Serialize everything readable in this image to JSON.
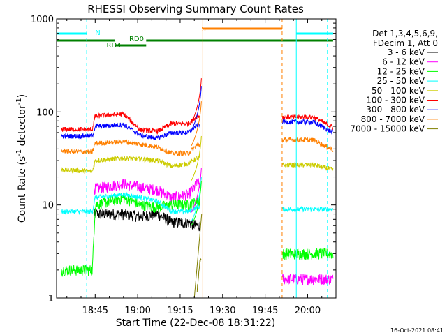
{
  "chart_data": {
    "type": "line",
    "title": "RHESSI Observing Summary Count Rates",
    "xlabel": "Start Time (22-Dec-08 18:31:22)",
    "ylabel_main": "Count Rate (s",
    "ylabel_sup1": "-1",
    "ylabel_mid": " detector",
    "ylabel_sup2": "-1",
    "ylabel_end": ")",
    "yscale": "log",
    "ylim": [
      1,
      1000
    ],
    "xlim": [
      "18:31",
      "20:10"
    ],
    "x_ticks": [
      "18:45",
      "19:00",
      "19:15",
      "19:30",
      "19:45",
      "20:00"
    ],
    "y_ticks": [
      "1",
      "10",
      "100",
      "1000"
    ],
    "timestamp": "16-Oct-2021 08:41",
    "legend": {
      "header1": "Det 1,3,4,5,6,9,",
      "header2": "FDecim 1, Att 0",
      "placement": "right"
    },
    "series": [
      {
        "name": "3 - 6 keV",
        "color": "#000000",
        "x": [
          "18:33",
          "18:44",
          "18:45",
          "18:55",
          "19:01",
          "19:07",
          "19:12",
          "19:18",
          "19:21",
          "19:23",
          "20:02",
          "20:09"
        ],
        "values": [
          0,
          0,
          8,
          8,
          7.5,
          8,
          6.5,
          6.5,
          6,
          0,
          0,
          0
        ]
      },
      {
        "name": "6 - 12 keV",
        "color": "#ff00ff",
        "x": [
          "18:44",
          "18:45",
          "18:55",
          "19:01",
          "19:07",
          "19:12",
          "19:18",
          "19:21",
          "19:23",
          "20:02",
          "20:09"
        ],
        "values": [
          0,
          15,
          17,
          15.5,
          14.5,
          12,
          13,
          17,
          0,
          1.6,
          1.6
        ]
      },
      {
        "name": "12 - 25 keV",
        "color": "#00ff00",
        "x": [
          "18:33",
          "18:44",
          "18:45",
          "18:55",
          "19:01",
          "19:07",
          "19:12",
          "19:18",
          "19:21",
          "19:23",
          "20:02",
          "20:09"
        ],
        "values": [
          2,
          2,
          10,
          12,
          10,
          9.5,
          10,
          10,
          11,
          0,
          3,
          3
        ]
      },
      {
        "name": "25 - 50 keV",
        "color": "#00ffff",
        "x": [
          "18:33",
          "18:44",
          "18:45",
          "18:55",
          "19:01",
          "19:07",
          "19:12",
          "19:18",
          "19:21",
          "19:23",
          "20:02",
          "20:09"
        ],
        "values": [
          8.5,
          8.5,
          12,
          13,
          12,
          11,
          8.5,
          8.5,
          9.5,
          0,
          9,
          9
        ]
      },
      {
        "name": "50 - 100 keV",
        "color": "#cccc00",
        "x": [
          "18:33",
          "18:44",
          "18:45",
          "18:55",
          "19:01",
          "19:07",
          "19:12",
          "19:18",
          "19:21",
          "19:23",
          "20:02",
          "20:09"
        ],
        "values": [
          24,
          23,
          30,
          32,
          31,
          30,
          26,
          28,
          32,
          0,
          27,
          24
        ]
      },
      {
        "name": "100 - 300 keV",
        "color": "#ff0000",
        "x": [
          "18:33",
          "18:44",
          "18:45",
          "18:55",
          "19:01",
          "19:07",
          "19:12",
          "19:18",
          "19:21",
          "19:23",
          "20:02",
          "20:09"
        ],
        "values": [
          65,
          65,
          90,
          95,
          64,
          62,
          75,
          75,
          90,
          0,
          88,
          68
        ]
      },
      {
        "name": "300 - 800 keV",
        "color": "#0000ff",
        "x": [
          "18:33",
          "18:44",
          "18:45",
          "18:55",
          "19:01",
          "19:07",
          "19:12",
          "19:18",
          "19:21",
          "19:23",
          "20:02",
          "20:09"
        ],
        "values": [
          55,
          55,
          70,
          73,
          56,
          52,
          60,
          60,
          72,
          0,
          78,
          60
        ]
      },
      {
        "name": "800 - 7000 keV",
        "color": "#ff8000",
        "x": [
          "18:33",
          "18:44",
          "18:45",
          "18:55",
          "19:01",
          "19:07",
          "19:12",
          "19:18",
          "19:21",
          "19:23",
          "20:02",
          "20:09"
        ],
        "values": [
          38,
          37,
          46,
          48,
          45,
          42,
          36,
          36,
          44,
          0,
          50,
          39
        ]
      },
      {
        "name": "7000 - 15000 keV",
        "color": "#808000",
        "x": [
          "19:21",
          "19:22",
          "19:23",
          "20:02",
          "20:09"
        ],
        "values": [
          1.2,
          2.5,
          0,
          0,
          0
        ]
      }
    ],
    "flags": [
      {
        "label": "N",
        "color": "#00ffff"
      },
      {
        "label": "S",
        "color": "#ff8000"
      },
      {
        "label": "RD0",
        "color": "#008000"
      },
      {
        "label": "RD4",
        "color": "#008000"
      }
    ],
    "flag_data": {
      "night": [
        [
          "18:31",
          "18:42"
        ],
        [
          "19:56",
          "20:09"
        ]
      ],
      "saa": [
        [
          "19:23",
          "19:51"
        ]
      ],
      "rd0": [
        [
          "18:31",
          "20:09"
        ]
      ],
      "rd4": [
        [
          "18:46",
          "18:52"
        ]
      ],
      "night_markers": [
        "18:42",
        "20:07"
      ],
      "saa_markers": [
        "19:23",
        "19:51"
      ],
      "cyan_solid": [
        "18:31",
        "19:56"
      ]
    }
  }
}
